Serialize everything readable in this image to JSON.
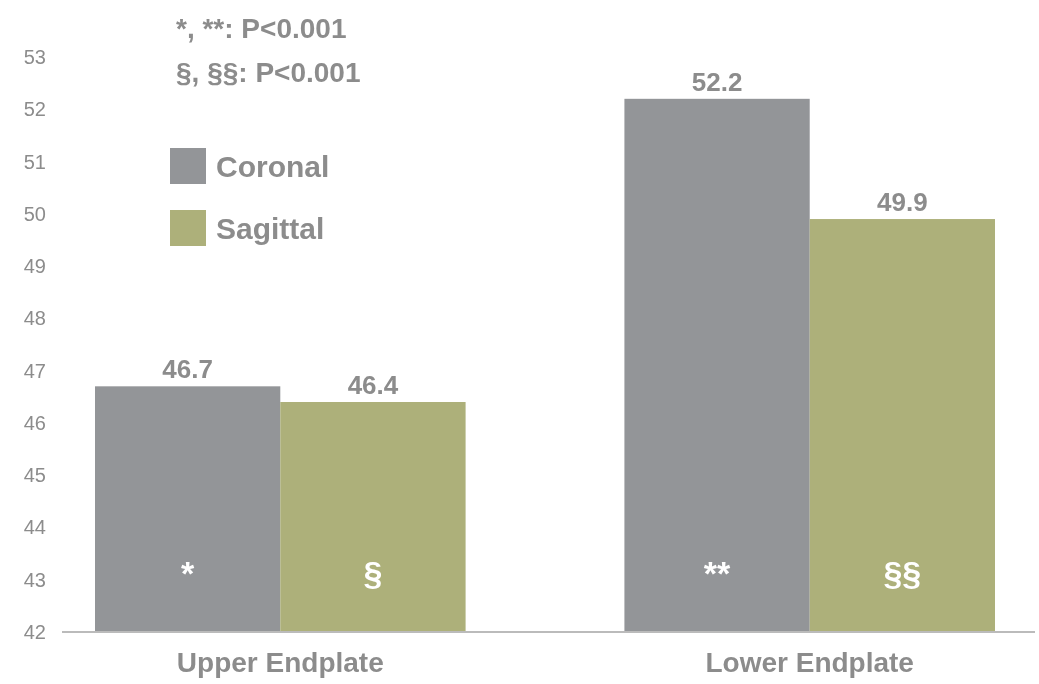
{
  "chart_data": {
    "type": "bar",
    "categories": [
      "Upper Endplate",
      "Lower Endplate"
    ],
    "series": [
      {
        "name": "Coronal",
        "color": "#939598",
        "values": [
          46.7,
          52.2
        ]
      },
      {
        "name": "Sagittal",
        "color": "#adb07a",
        "values": [
          46.4,
          49.9
        ]
      }
    ],
    "ylim": [
      42,
      53
    ],
    "yticks": [
      42,
      43,
      44,
      45,
      46,
      47,
      48,
      49,
      50,
      51,
      52,
      53
    ],
    "data_labels": true,
    "legend": "top left",
    "grid": false,
    "annotations": [
      "*, **: P<0.001",
      "§, §§: P<0.001",
      {
        "text": "*",
        "x": "Upper Endplate",
        "y": 42.9
      },
      {
        "text": "§",
        "x": "Upper Endplate",
        "y": 42.9
      },
      {
        "text": "**",
        "x": "Lower Endplate",
        "y": 42.9
      },
      {
        "text": "§§",
        "x": "Lower Endplate",
        "y": 42.9
      }
    ]
  }
}
